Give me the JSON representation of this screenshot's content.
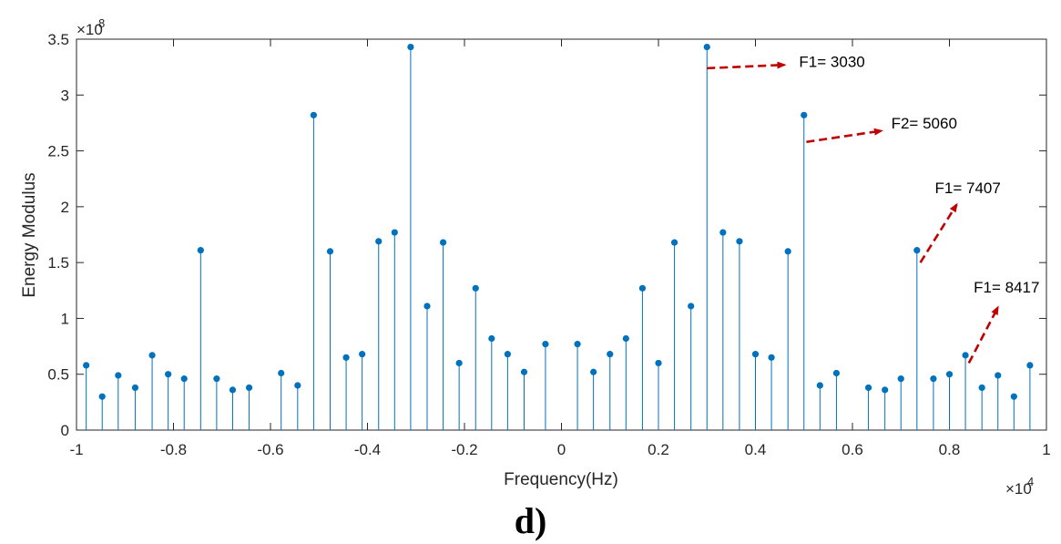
{
  "chart_data": {
    "type": "stem",
    "xlabel": "Frequency(Hz)",
    "ylabel": "Energy Modulus",
    "x_exponent_label": "×10",
    "x_exponent_power": "4",
    "y_exponent_label": "×10",
    "y_exponent_power": "8",
    "xlim": [
      -10000,
      10000
    ],
    "ylim": [
      0,
      350000000
    ],
    "x_ticks": [
      -10000,
      -8000,
      -6000,
      -4000,
      -2000,
      0,
      2000,
      4000,
      6000,
      8000,
      10000
    ],
    "x_tick_labels": [
      "-1",
      "-0.8",
      "-0.6",
      "-0.4",
      "-0.2",
      "0",
      "0.2",
      "0.4",
      "0.6",
      "0.8",
      "1"
    ],
    "y_ticks": [
      0,
      50000000,
      100000000,
      150000000,
      200000000,
      250000000,
      300000000,
      350000000
    ],
    "y_tick_labels": [
      "0",
      "0.5",
      "1",
      "1.5",
      "2",
      "2.5",
      "3",
      "3.5"
    ],
    "series_color": "#0072bd",
    "annotation_color": "#c00000",
    "x": [
      -9800,
      -9470,
      -9140,
      -8790,
      -8440,
      -8110,
      -7780,
      -7440,
      -7110,
      -6780,
      -6440,
      -5780,
      -5440,
      -5110,
      -4770,
      -4440,
      -4110,
      -3770,
      -3440,
      -3110,
      -2770,
      -2440,
      -2110,
      -1770,
      -1440,
      -1110,
      -770,
      -330,
      330,
      660,
      1000,
      1330,
      1670,
      2000,
      2330,
      2670,
      3000,
      3330,
      3670,
      4000,
      4330,
      4670,
      5000,
      5330,
      5670,
      6330,
      6670,
      7000,
      7330,
      7670,
      8000,
      8330,
      8670,
      9000,
      9330,
      9660
    ],
    "y": [
      58000000,
      30000000,
      49000000,
      38000000,
      67000000,
      50000000,
      46000000,
      161000000,
      46000000,
      36000000,
      38000000,
      51000000,
      40000000,
      282000000,
      160000000,
      65000000,
      68000000,
      169000000,
      177000000,
      343000000,
      111000000,
      168000000,
      60000000,
      127000000,
      82000000,
      68000000,
      52000000,
      77000000,
      77000000,
      52000000,
      68000000,
      82000000,
      127000000,
      60000000,
      168000000,
      111000000,
      343000000,
      177000000,
      169000000,
      68000000,
      65000000,
      160000000,
      282000000,
      40000000,
      51000000,
      38000000,
      36000000,
      46000000,
      161000000,
      46000000,
      50000000,
      67000000,
      38000000,
      49000000,
      30000000,
      58000000
    ],
    "annotations": [
      {
        "text": "F1= 3030",
        "from": [
          3000,
          324000000
        ],
        "to": [
          4600,
          327000000
        ],
        "text_at": [
          4900,
          325000000
        ]
      },
      {
        "text": "F2= 5060",
        "from": [
          5050,
          258000000
        ],
        "to": [
          6600,
          268000000
        ],
        "text_at": [
          6800,
          270000000
        ]
      },
      {
        "text": "F1= 7407",
        "from": [
          7400,
          150000000
        ],
        "to": [
          8150,
          202000000
        ],
        "text_at": [
          7700,
          212000000
        ]
      },
      {
        "text": "F1= 8417",
        "from": [
          8400,
          60000000
        ],
        "to": [
          9000,
          110000000
        ],
        "text_at": [
          8500,
          123000000
        ]
      }
    ]
  },
  "caption": "d)"
}
